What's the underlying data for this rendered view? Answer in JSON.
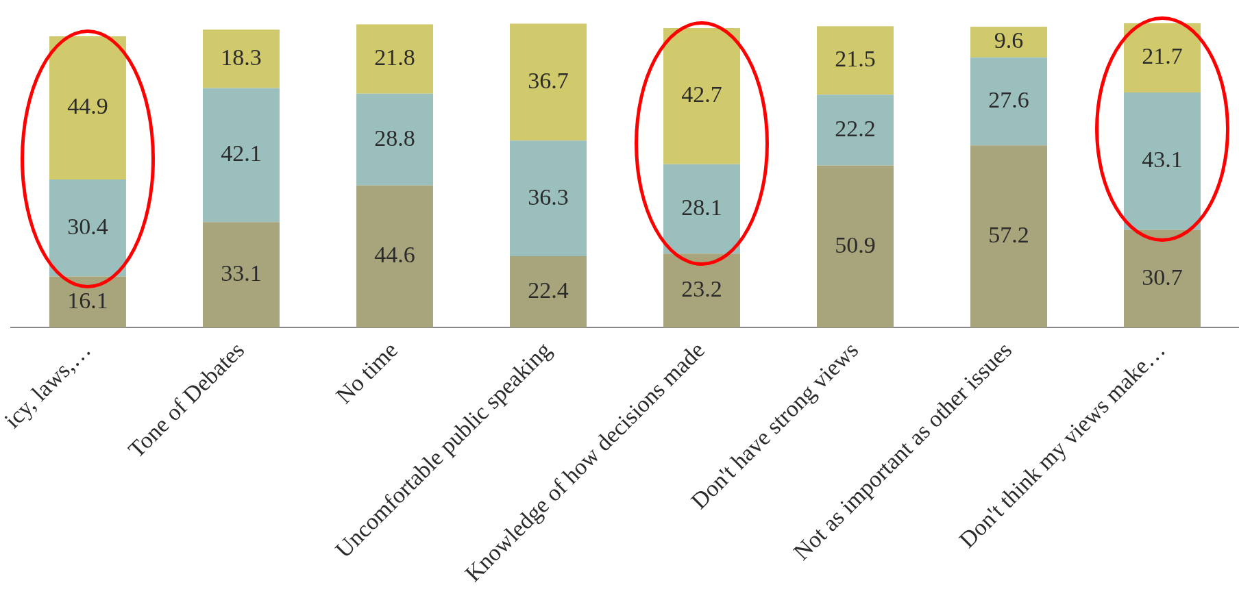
{
  "chart_data": {
    "type": "bar",
    "stacked": true,
    "data_labels": true,
    "legend": false,
    "categories": [
      "icy, laws,…",
      "Tone of Debates",
      "No time",
      "Uncomfortable public speaking",
      "Knowledge of how decisions made",
      "Don't have strong views",
      "Not as important as other issues",
      "Don't think my views make…"
    ],
    "series": [
      {
        "color": "#a8a57c",
        "values": [
          16.1,
          33.1,
          44.6,
          22.4,
          23.2,
          50.9,
          57.2,
          30.7
        ]
      },
      {
        "color": "#9bbfbd",
        "values": [
          30.4,
          42.1,
          28.8,
          36.3,
          28.1,
          22.2,
          27.6,
          43.1
        ]
      },
      {
        "color": "#d1ca6c",
        "values": [
          44.9,
          18.3,
          21.8,
          36.7,
          42.7,
          21.5,
          9.6,
          21.7
        ]
      }
    ]
  }
}
